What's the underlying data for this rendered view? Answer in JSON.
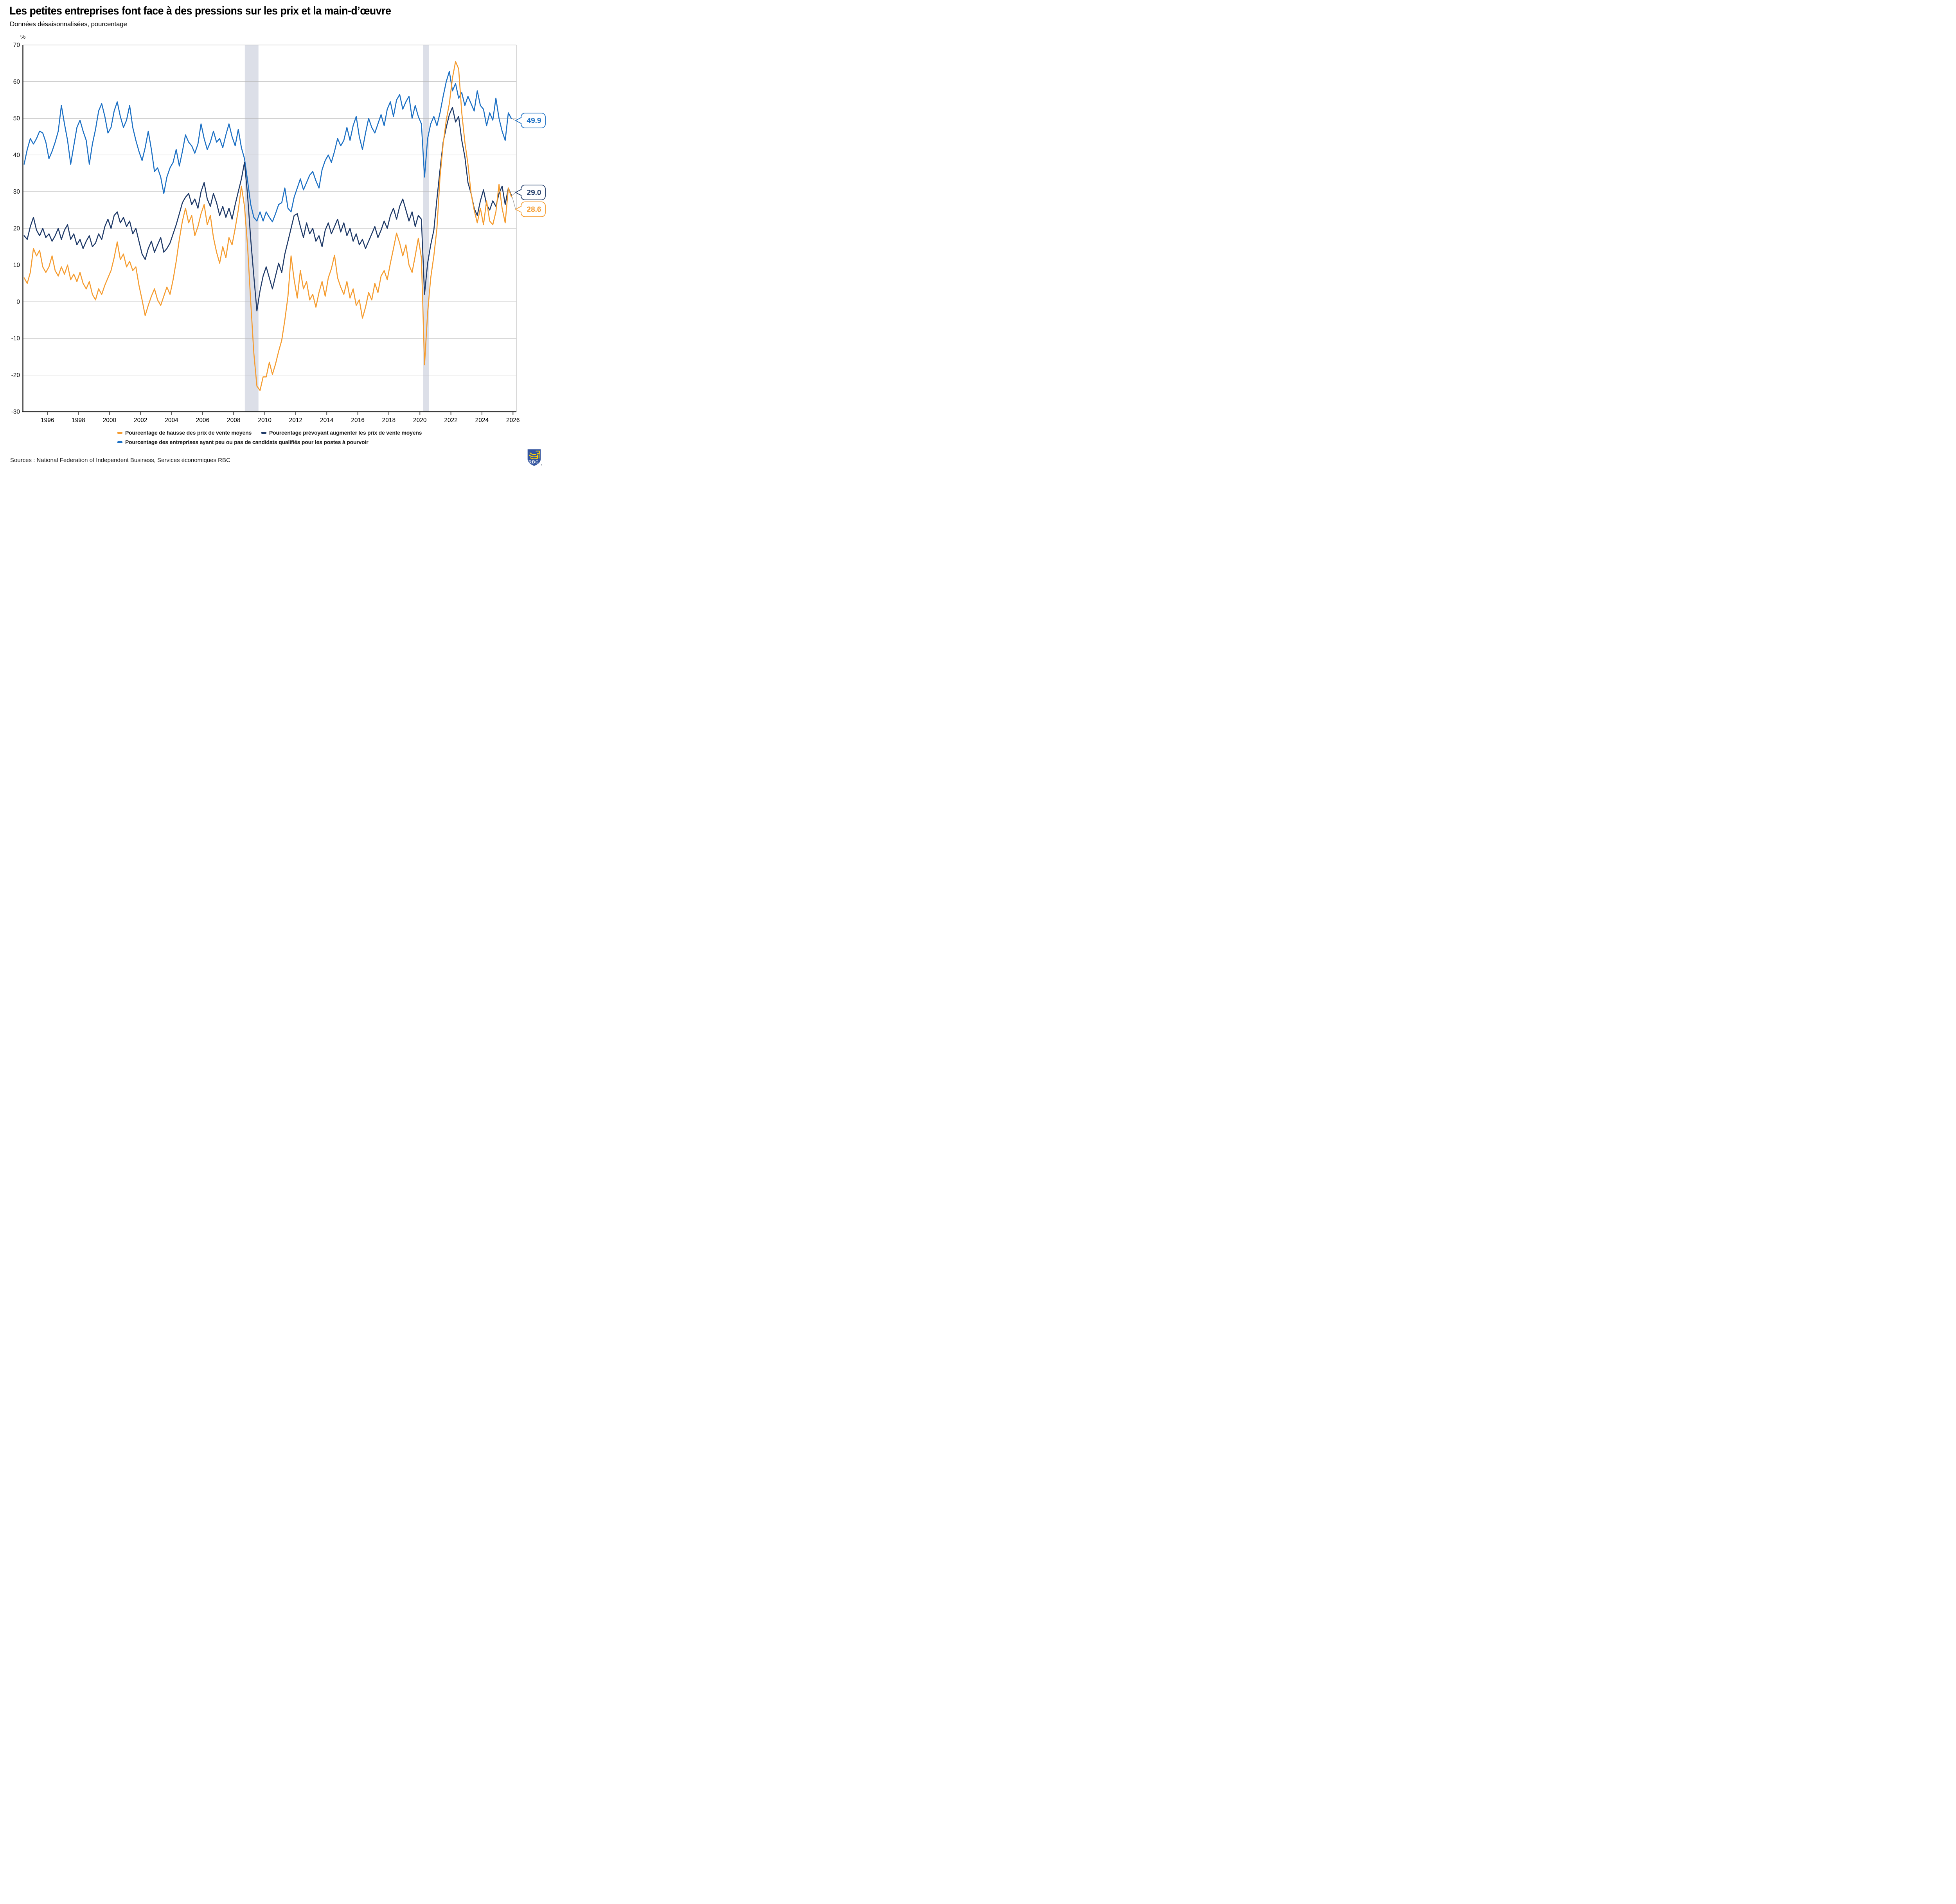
{
  "title": "Les petites entreprises font face à des pressions sur les prix et la main-d’œuvre",
  "subtitle": "Données désaisonnalisées, pourcentage",
  "y_axis_unit": "%",
  "source": "Sources : National Federation of Independent Business, Services économiques RBC",
  "logo": {
    "text": "RBC"
  },
  "chart_data": {
    "type": "line",
    "title": "Les petites entreprises font face à des pressions sur les prix et la main-d’œuvre",
    "xlabel": "",
    "ylabel": "%",
    "x_range": [
      1994.42,
      2026.22
    ],
    "y_range": [
      -30,
      70
    ],
    "x_ticks": [
      1996,
      1998,
      2000,
      2002,
      2004,
      2006,
      2008,
      2010,
      2012,
      2014,
      2016,
      2018,
      2020,
      2022,
      2024,
      2026
    ],
    "y_ticks": [
      70,
      60,
      50,
      40,
      30,
      20,
      10,
      0,
      -10,
      -20,
      -30
    ],
    "grid": true,
    "legend_position": "bottom",
    "recession_bands": [
      [
        2008.72,
        2009.6
      ],
      [
        2020.2,
        2020.58
      ]
    ],
    "x_start": 1994.5,
    "x_step": 0.2,
    "series": [
      {
        "name": "Pourcentage de hausse des prix de vente moyens",
        "color": "#F59C30",
        "end_label": "28.6",
        "callout_value": 25.2,
        "values": [
          6.5,
          5,
          8,
          14.5,
          12.5,
          14,
          9.5,
          8,
          9.5,
          12.5,
          8.5,
          7,
          9.5,
          7.5,
          10,
          6,
          7.5,
          5.5,
          8,
          5,
          3.5,
          5.5,
          2,
          0.5,
          3.5,
          2,
          4.5,
          6.5,
          8.5,
          12,
          16.3,
          11.5,
          13,
          9.5,
          11,
          8.5,
          9.5,
          4.5,
          0.5,
          -3.8,
          -1,
          1.5,
          3.5,
          0.5,
          -1,
          1.5,
          4,
          2,
          6,
          11,
          17,
          22,
          25.5,
          21.5,
          23.5,
          18,
          20.5,
          24,
          26.5,
          21,
          23.5,
          17.5,
          13.5,
          10.5,
          15,
          12,
          17.5,
          15.5,
          20,
          25,
          31.5,
          26,
          15,
          0,
          -14,
          -23,
          -24.2,
          -20.5,
          -20.5,
          -16.5,
          -19.8,
          -17,
          -13.5,
          -10.5,
          -5,
          1.5,
          12.5,
          6,
          1,
          8.5,
          3.5,
          5.5,
          0.5,
          2,
          -1.5,
          2.5,
          5.5,
          1.5,
          6.5,
          9,
          12.7,
          6.5,
          4,
          2,
          5.5,
          1,
          3.5,
          -1,
          0.5,
          -4.5,
          -1.5,
          2.5,
          0.5,
          5,
          2.5,
          7,
          8.5,
          6,
          10.5,
          14.5,
          18.7,
          16,
          12.5,
          15.5,
          10,
          8,
          12.5,
          17.3,
          12,
          -17.2,
          -3,
          6.5,
          12.5,
          20,
          34,
          43,
          49.5,
          54,
          61,
          65.5,
          63.5,
          51.5,
          43.5,
          37.5,
          29.5,
          25,
          21.5,
          25.5,
          21,
          27.5,
          22,
          21,
          24.5,
          32,
          25.5,
          21.5,
          31,
          28.6
        ]
      },
      {
        "name": "Pourcentage prévoyant augmenter les prix de vente moyens",
        "color": "#1F3A68",
        "end_label": "29.0",
        "callout_value": 29.8,
        "values": [
          18,
          17,
          20.5,
          23,
          19.5,
          18,
          20,
          17.5,
          18.5,
          16.5,
          18,
          20,
          17,
          19.5,
          21,
          17,
          18.5,
          15.5,
          17,
          14.5,
          16.5,
          18,
          15,
          16,
          18.5,
          17,
          20.5,
          22.5,
          20,
          23.5,
          24.5,
          21.5,
          23,
          20.5,
          22,
          18.5,
          20,
          16.5,
          13,
          11.5,
          14.5,
          16.5,
          13.5,
          15.5,
          17.5,
          13.5,
          14.5,
          16,
          18.5,
          21,
          24,
          27,
          28.5,
          29.5,
          26.5,
          28,
          25.5,
          30,
          32.5,
          28,
          26,
          29.5,
          27,
          23.5,
          26,
          23,
          25.5,
          22.5,
          26.5,
          30,
          33.5,
          38,
          29,
          17,
          7,
          -2.5,
          3,
          7,
          9.5,
          6.5,
          3.5,
          7,
          10.5,
          8,
          13,
          16.5,
          20,
          23.5,
          24,
          20.5,
          17.5,
          21.5,
          18.5,
          20,
          16.5,
          18,
          15,
          19.5,
          21.5,
          18.5,
          20.5,
          22.5,
          19,
          21.5,
          18,
          20,
          16.5,
          18.5,
          15.5,
          17,
          14.5,
          16.5,
          18.5,
          20.5,
          17.5,
          19.5,
          22,
          20,
          23.5,
          25.5,
          22.5,
          26,
          28,
          25,
          22,
          24.5,
          20.5,
          23.5,
          22.5,
          2,
          10.5,
          15.5,
          19.5,
          28,
          36,
          43.5,
          47.5,
          51,
          53,
          49,
          50.5,
          44,
          39.5,
          32.5,
          29.5,
          25.5,
          23.5,
          27.5,
          30.5,
          26.5,
          25,
          27.5,
          26,
          29.5,
          31.5,
          26.5,
          31,
          29
        ]
      },
      {
        "name": "Pourcentage des entreprises ayant peu ou pas de candidats qualifiés pour les postes à pourvoir",
        "color": "#1C70C4",
        "end_label": "49.9",
        "callout_value": 49.4,
        "values": [
          37.5,
          41.5,
          44.5,
          43,
          44.5,
          46.5,
          46,
          43.5,
          39,
          41,
          43.5,
          46.5,
          53.5,
          48.5,
          44,
          37.5,
          42.5,
          47.5,
          49.5,
          46.5,
          44,
          37.5,
          43,
          47,
          52,
          54,
          50.5,
          46,
          47.5,
          52,
          54.5,
          50.5,
          47.5,
          49.5,
          53.5,
          47.5,
          44,
          41,
          38.5,
          42,
          46.5,
          41.5,
          35.5,
          36.5,
          34,
          29.5,
          34,
          36.5,
          38,
          41.5,
          37,
          41,
          45.5,
          43.5,
          42.5,
          40.5,
          43,
          48.5,
          44.5,
          41.5,
          43.5,
          46.5,
          43.5,
          44.5,
          42,
          45.5,
          48.5,
          45,
          42.5,
          47,
          42,
          39,
          33,
          26.5,
          23,
          22,
          24.5,
          22,
          24.5,
          23,
          21.8,
          24,
          26.5,
          27,
          31,
          25.5,
          24.5,
          28.5,
          31,
          33.5,
          30.5,
          32.5,
          34.5,
          35.5,
          33,
          31,
          36,
          38.5,
          40,
          38,
          41,
          44.5,
          42.5,
          44,
          47.5,
          44,
          48,
          50.5,
          45,
          41.5,
          46,
          50,
          47.5,
          46,
          48.5,
          51,
          48,
          52.5,
          54.5,
          50.5,
          55,
          56.5,
          52.5,
          54.5,
          56,
          50,
          53.5,
          50.5,
          48.5,
          34,
          44.5,
          48.5,
          50.5,
          48,
          51.5,
          56,
          60,
          62.8,
          57.5,
          59.5,
          55.5,
          57,
          53.5,
          56,
          54,
          52,
          57.5,
          53.5,
          52.5,
          48,
          51.5,
          49.5,
          55.5,
          50,
          46.5,
          44,
          51.5,
          49.9
        ]
      }
    ],
    "colors": {
      "grid": "#B3B3B3",
      "axis": "#1A1A1A",
      "tick": "#555555",
      "band": "#DCDFE8",
      "leader": "#9B9B9B"
    }
  }
}
